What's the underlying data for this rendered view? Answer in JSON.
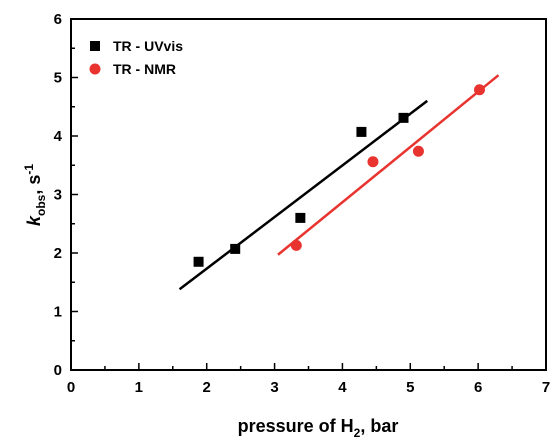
{
  "chart_data": {
    "type": "scatter",
    "xlabel": {
      "main": "pressure of H",
      "sub": "2",
      "tail": ", bar"
    },
    "ylabel": {
      "italic": "k",
      "sub": "obs",
      "tail": ", s",
      "sup": "-1"
    },
    "xlim": [
      0,
      7
    ],
    "ylim": [
      0,
      6
    ],
    "xticks": [
      "0",
      "1",
      "2",
      "3",
      "4",
      "5",
      "6",
      "7"
    ],
    "yticks": [
      "0",
      "1",
      "2",
      "3",
      "4",
      "5",
      "6"
    ],
    "legend_position": "top-left",
    "series": [
      {
        "name": "TR - UVvis",
        "marker": "square",
        "color": "#000000",
        "points": [
          [
            1.88,
            1.85
          ],
          [
            2.42,
            2.07
          ],
          [
            3.38,
            2.6
          ],
          [
            4.28,
            4.07
          ],
          [
            4.9,
            4.31
          ]
        ],
        "fit": [
          [
            1.6,
            1.38
          ],
          [
            5.25,
            4.6
          ]
        ]
      },
      {
        "name": "TR - NMR",
        "marker": "circle",
        "color": "#e8332f",
        "points": [
          [
            3.32,
            2.13
          ],
          [
            4.45,
            3.56
          ],
          [
            5.12,
            3.74
          ],
          [
            6.02,
            4.79
          ]
        ],
        "fit": [
          [
            3.05,
            1.97
          ],
          [
            6.3,
            5.04
          ]
        ]
      }
    ]
  }
}
